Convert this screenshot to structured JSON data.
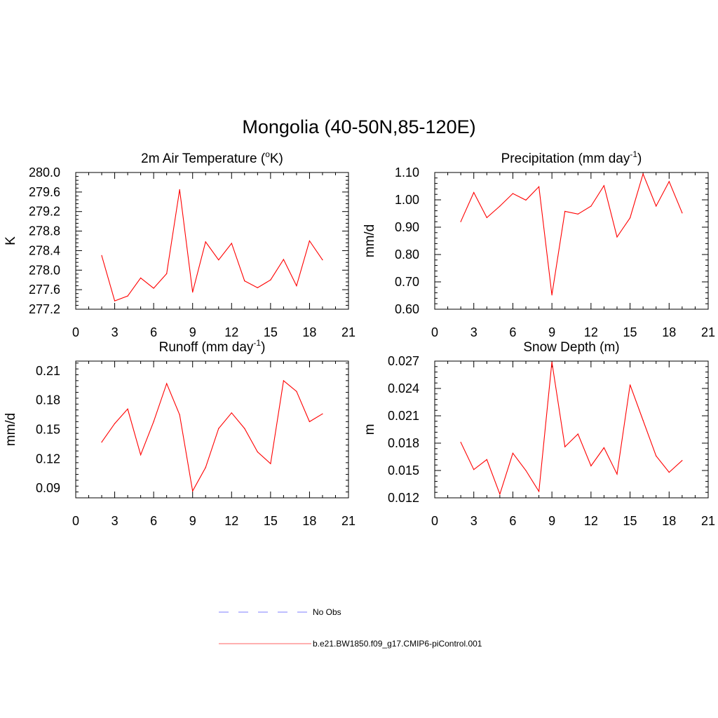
{
  "figure": {
    "title": "Mongolia (40-50N,85-120E)"
  },
  "chart_data": [
    {
      "type": "line",
      "title_main": "2m Air Temperature (",
      "title_sup": "o",
      "title_tail": "K)",
      "ylabel": "K",
      "xlim": [
        0,
        21
      ],
      "xticks": [
        "0",
        "3",
        "6",
        "9",
        "12",
        "15",
        "18",
        "21"
      ],
      "ylim": [
        277.2,
        280.0
      ],
      "yticks": [
        "277.2",
        "277.6",
        "278.0",
        "278.4",
        "278.8",
        "279.2",
        "279.6",
        "280.0"
      ],
      "series": [
        {
          "name": "b.e21.BW1850.f09_g17.CMIP6-piControl.001",
          "color": "#ff0000",
          "x": [
            2,
            3,
            4,
            5,
            6,
            7,
            8,
            9,
            10,
            11,
            12,
            13,
            14,
            15,
            16,
            17,
            18,
            19
          ],
          "y": [
            278.3,
            277.37,
            277.47,
            277.84,
            277.63,
            277.93,
            279.65,
            277.55,
            278.58,
            278.21,
            278.55,
            277.78,
            277.64,
            277.8,
            278.22,
            277.68,
            278.6,
            278.21
          ]
        }
      ]
    },
    {
      "type": "line",
      "title_main": "Precipitation (mm day",
      "title_sup": "-1",
      "title_tail": ")",
      "ylabel": "mm/d",
      "xlim": [
        0,
        21
      ],
      "xticks": [
        "0",
        "3",
        "6",
        "9",
        "12",
        "15",
        "18",
        "21"
      ],
      "ylim": [
        0.6,
        1.1
      ],
      "yticks": [
        "0.60",
        "0.70",
        "0.80",
        "0.90",
        "1.00",
        "1.10"
      ],
      "series": [
        {
          "name": "b.e21.BW1850.f09_g17.CMIP6-piControl.001",
          "color": "#ff0000",
          "x": [
            2,
            3,
            4,
            5,
            6,
            7,
            8,
            9,
            10,
            11,
            12,
            13,
            14,
            15,
            16,
            17,
            18,
            19
          ],
          "y": [
            0.92,
            1.027,
            0.935,
            0.977,
            1.023,
            0.999,
            1.048,
            0.652,
            0.958,
            0.948,
            0.977,
            1.052,
            0.864,
            0.934,
            1.095,
            0.977,
            1.067,
            0.952
          ]
        }
      ]
    },
    {
      "type": "line",
      "title_main": "Runoff (mm day",
      "title_sup": "-1",
      "title_tail": ")",
      "ylabel": "mm/d",
      "xlim": [
        0,
        21
      ],
      "xticks": [
        "0",
        "3",
        "6",
        "9",
        "12",
        "15",
        "18",
        "21"
      ],
      "ylim": [
        0.08,
        0.22
      ],
      "yticks": [
        "0.09",
        "0.12",
        "0.15",
        "0.18",
        "0.21"
      ],
      "series": [
        {
          "name": "b.e21.BW1850.f09_g17.CMIP6-piControl.001",
          "color": "#ff0000",
          "x": [
            2,
            3,
            4,
            5,
            6,
            7,
            8,
            9,
            10,
            11,
            12,
            13,
            14,
            15,
            16,
            17,
            18,
            19
          ],
          "y": [
            0.137,
            0.156,
            0.171,
            0.124,
            0.158,
            0.197,
            0.165,
            0.087,
            0.111,
            0.151,
            0.167,
            0.151,
            0.127,
            0.115,
            0.2,
            0.189,
            0.158,
            0.166
          ]
        }
      ]
    },
    {
      "type": "line",
      "title_main": "Snow Depth (m)",
      "title_sup": "",
      "title_tail": "",
      "ylabel": "m",
      "xlim": [
        0,
        21
      ],
      "xticks": [
        "0",
        "3",
        "6",
        "9",
        "12",
        "15",
        "18",
        "21"
      ],
      "ylim": [
        0.012,
        0.027
      ],
      "yticks": [
        "0.012",
        "0.015",
        "0.018",
        "0.021",
        "0.024",
        "0.027"
      ],
      "series": [
        {
          "name": "b.e21.BW1850.f09_g17.CMIP6-piControl.001",
          "color": "#ff0000",
          "x": [
            2,
            3,
            4,
            5,
            6,
            7,
            8,
            9,
            10,
            11,
            12,
            13,
            14,
            15,
            16,
            17,
            18,
            19
          ],
          "y": [
            0.0181,
            0.0151,
            0.0162,
            0.0124,
            0.0169,
            0.015,
            0.0127,
            0.0269,
            0.0176,
            0.019,
            0.0155,
            0.0175,
            0.0146,
            0.0244,
            0.0205,
            0.0166,
            0.0148,
            0.0161
          ]
        }
      ]
    }
  ],
  "legend": {
    "placement": "bottom-center",
    "items": [
      {
        "label": "No Obs",
        "color": "#9999ff",
        "style": "dashed"
      },
      {
        "label": "b.e21.BW1850.f09_g17.CMIP6-piControl.001",
        "color": "#ff0000",
        "style": "solid"
      }
    ]
  }
}
